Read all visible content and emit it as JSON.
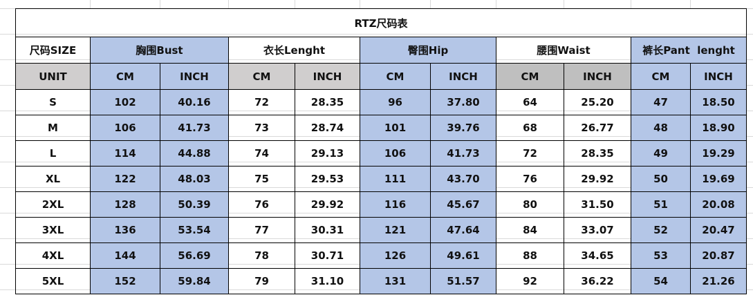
{
  "title": "RTZ尺码表",
  "headers": {
    "size": "尺码SIZE",
    "bust": "胸围Bust",
    "length": "衣长Lenght",
    "hip": "臀围Hip",
    "waist": "腰围Waist",
    "pant": "裤长Pant  lenght"
  },
  "units": {
    "unit": "UNIT",
    "cm": "CM",
    "inch": "INCH"
  },
  "colors": {
    "blue": "#b4c6e7",
    "gray": "#d0cece",
    "dark_gray": "#bfbfbf"
  },
  "rows": [
    [
      "S",
      "102",
      "40.16",
      "72",
      "28.35",
      "96",
      "37.80",
      "64",
      "25.20",
      "47",
      "18.50"
    ],
    [
      "M",
      "106",
      "41.73",
      "73",
      "28.74",
      "101",
      "39.76",
      "68",
      "26.77",
      "48",
      "18.90"
    ],
    [
      "L",
      "114",
      "44.88",
      "74",
      "29.13",
      "106",
      "41.73",
      "72",
      "28.35",
      "49",
      "19.29"
    ],
    [
      "XL",
      "122",
      "48.03",
      "75",
      "29.53",
      "111",
      "43.70",
      "76",
      "29.92",
      "50",
      "19.69"
    ],
    [
      "2XL",
      "128",
      "50.39",
      "76",
      "29.92",
      "116",
      "45.67",
      "80",
      "31.50",
      "51",
      "20.08"
    ],
    [
      "3XL",
      "136",
      "53.54",
      "77",
      "30.31",
      "121",
      "47.64",
      "84",
      "33.07",
      "52",
      "20.47"
    ],
    [
      "4XL",
      "144",
      "56.69",
      "78",
      "30.71",
      "126",
      "49.61",
      "88",
      "34.65",
      "53",
      "20.87"
    ],
    [
      "5XL",
      "152",
      "59.84",
      "79",
      "31.10",
      "131",
      "51.57",
      "92",
      "36.22",
      "54",
      "21.26"
    ]
  ]
}
